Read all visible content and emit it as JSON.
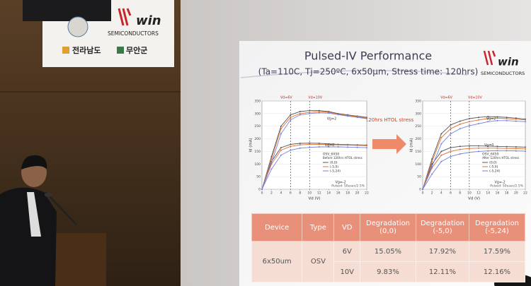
{
  "banner": {
    "logo": "win",
    "tagline": "SEMICONDUCTORS",
    "labels": [
      "전라남도",
      "무안군"
    ]
  },
  "slide": {
    "title": "Pulsed-IV Performance",
    "subtitle": "(Ta=110C, Tj=250ºC, 6x50μm, Stress time: 120hrs)",
    "logo": {
      "name": "win",
      "tagline": "SEMICONDUCTORS"
    },
    "arrow_label": "120hrs HTOL stress",
    "charts": [
      {
        "type": "line",
        "ylabel": "Id (mA)",
        "xlabel": "Vd (V)",
        "x": [
          0,
          2,
          4,
          6,
          8,
          10,
          12,
          14,
          16,
          18,
          20,
          22
        ],
        "xlim": [
          0,
          22
        ],
        "ylim": [
          0,
          350
        ],
        "xticks": [
          0,
          2,
          4,
          6,
          8,
          10,
          12,
          14,
          16,
          18,
          20,
          22
        ],
        "yticks": [
          0,
          50,
          100,
          150,
          200,
          250,
          300,
          350
        ],
        "vlines": [
          {
            "value": 6,
            "label": "Vd=6V"
          },
          {
            "value": 10,
            "label": "Vd=10V"
          }
        ],
        "annotations": [
          "Vg=2",
          "Vg=0",
          "Vg=-2"
        ],
        "legend_title": "OSV_6X50",
        "legend_subtitle": "Before 120hrs HTOL stress",
        "note": "Pulsed: 50usec/2.5%",
        "series": [
          {
            "name": "(0,0)",
            "color": "#555555",
            "values": [
              0,
              130,
              250,
              295,
              308,
              312,
              312,
              308,
              300,
              295,
              290,
              285
            ],
            "values_low": [
              0,
              110,
              165,
              178,
              182,
              183,
              182,
              180,
              178,
              177,
              176,
              175
            ]
          },
          {
            "name": "(-5,0)",
            "color": "#e07030",
            "values": [
              0,
              120,
              240,
              285,
              300,
              305,
              308,
              305,
              298,
              292,
              288,
              282
            ],
            "values_low": [
              0,
              100,
              155,
              170,
              176,
              178,
              178,
              177,
              176,
              175,
              174,
              173
            ]
          },
          {
            "name": "(-5,24)",
            "color": "#7080e0",
            "values": [
              0,
              105,
              220,
              275,
              295,
              300,
              303,
              302,
              296,
              290,
              285,
              280
            ],
            "values_low": [
              0,
              80,
              135,
              155,
              163,
              166,
              168,
              168,
              168,
              167,
              166,
              165
            ]
          }
        ]
      },
      {
        "type": "line",
        "ylabel": "Id (mA)",
        "xlabel": "Vd (V)",
        "x": [
          0,
          2,
          4,
          6,
          8,
          10,
          12,
          14,
          16,
          18,
          20,
          22
        ],
        "xlim": [
          0,
          22
        ],
        "ylim": [
          0,
          350
        ],
        "xticks": [
          0,
          2,
          4,
          6,
          8,
          10,
          12,
          14,
          16,
          18,
          20,
          22
        ],
        "yticks": [
          0,
          50,
          100,
          150,
          200,
          250,
          300,
          350
        ],
        "vlines": [
          {
            "value": 6,
            "label": "Vd=6V"
          },
          {
            "value": 10,
            "label": "Vd=10V"
          }
        ],
        "annotations": [
          "Vg=2",
          "Vg=0",
          "Vg=-2"
        ],
        "legend_title": "OSV_6X50",
        "legend_subtitle": "After 120hrs HTOL stress",
        "note": "Pulsed: 50usec/2.5%",
        "series": [
          {
            "name": "(0,0)",
            "color": "#555555",
            "values": [
              0,
              120,
              220,
              255,
              270,
              280,
              285,
              288,
              287,
              285,
              282,
              278
            ],
            "values_low": [
              0,
              100,
              150,
              165,
              170,
              172,
              172,
              171,
              170,
              169,
              168,
              167
            ]
          },
          {
            "name": "(-5,0)",
            "color": "#e07030",
            "values": [
              0,
              110,
              205,
              240,
              258,
              268,
              275,
              280,
              282,
              280,
              278,
              275
            ],
            "values_low": [
              0,
              85,
              135,
              150,
              158,
              162,
              163,
              163,
              163,
              162,
              161,
              160
            ]
          },
          {
            "name": "(-5,24)",
            "color": "#7080e0",
            "values": [
              0,
              90,
              180,
              220,
              240,
              252,
              260,
              268,
              272,
              272,
              270,
              268
            ],
            "values_low": [
              0,
              60,
              110,
              130,
              140,
              146,
              150,
              152,
              153,
              153,
              152,
              151
            ]
          }
        ]
      }
    ],
    "table": {
      "headers": [
        "Device",
        "Type",
        "VD",
        "Degradation (0,0)",
        "Degradation (-5,0)",
        "Degradation (-5,24)"
      ],
      "rows": [
        [
          "6x50um",
          "OSV",
          "6V",
          "15.05%",
          "17.92%",
          "17.59%"
        ],
        [
          "10V",
          "9.83%",
          "12.11%",
          "12.16%"
        ]
      ]
    }
  }
}
